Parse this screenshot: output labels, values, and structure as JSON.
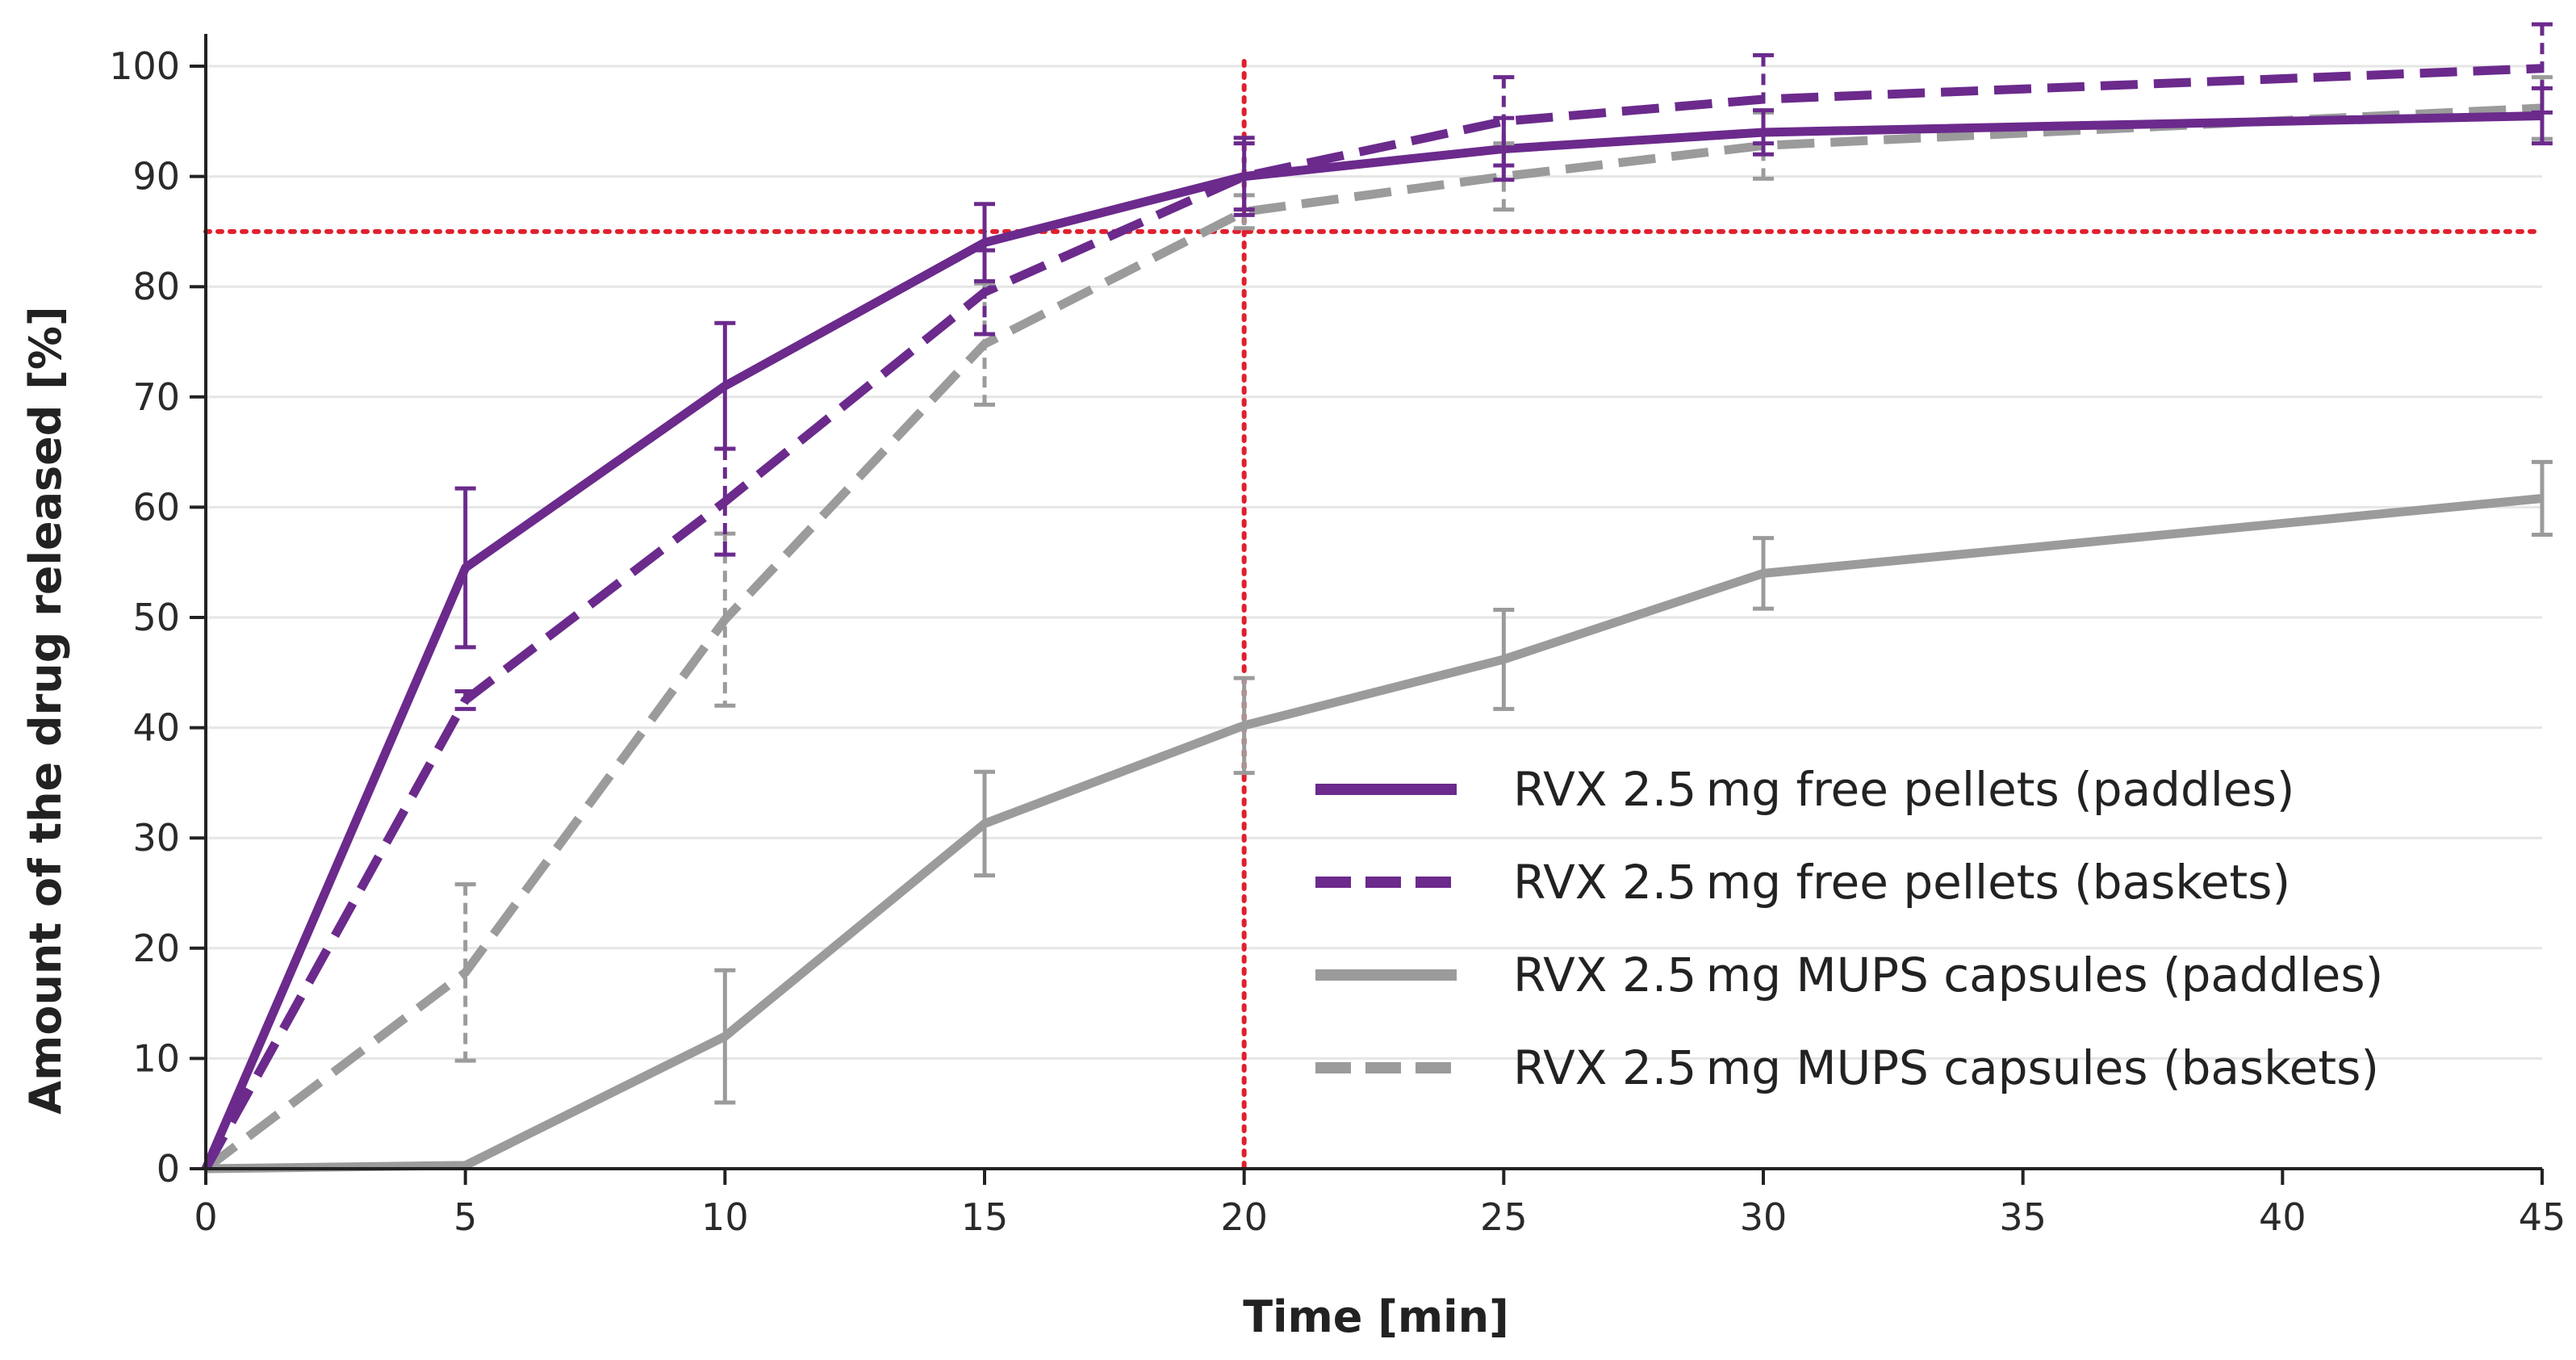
{
  "chart_data": {
    "type": "line",
    "title": "",
    "xlabel": "Time [min]",
    "ylabel": "Amount of the drug released [%]",
    "xlim": [
      0,
      45
    ],
    "ylim": [
      0,
      100
    ],
    "xticks": [
      0,
      5,
      10,
      15,
      20,
      25,
      30,
      35,
      40,
      45
    ],
    "yticks": [
      0,
      10,
      20,
      30,
      40,
      50,
      60,
      70,
      80,
      90,
      100
    ],
    "grid": "horizontal",
    "reference_lines": {
      "y": 85,
      "x": 20,
      "color": "#e0202e",
      "style": "dotted"
    },
    "legend_position": "lower-right",
    "series": [
      {
        "name": "RVX 2.5 mg free pellets (paddles)",
        "color": "#6b2a8c",
        "dash": "solid",
        "x": [
          0,
          5,
          10,
          15,
          20,
          25,
          30,
          45
        ],
        "values": [
          0,
          54.5,
          71,
          84,
          90,
          92.5,
          94,
          95.5
        ],
        "error": [
          0,
          7.2,
          5.7,
          3.5,
          3,
          2.8,
          2,
          2.5
        ]
      },
      {
        "name": "RVX 2.5 mg free pellets (baskets)",
        "color": "#6b2a8c",
        "dash": "dashed",
        "x": [
          0,
          5,
          10,
          15,
          20,
          25,
          30,
          45
        ],
        "values": [
          0,
          42.5,
          60.5,
          79.5,
          90,
          95,
          97,
          99.8
        ],
        "error": [
          0,
          0.8,
          4.8,
          3.8,
          3.5,
          4,
          4,
          4
        ]
      },
      {
        "name": "RVX 2.5 mg MUPS capsules (paddles)",
        "color": "#9b9b9b",
        "dash": "solid",
        "x": [
          0,
          5,
          10,
          15,
          20,
          25,
          30,
          45
        ],
        "values": [
          0,
          0.3,
          12,
          31.3,
          40.2,
          46.2,
          54,
          60.8
        ],
        "error": [
          0,
          0,
          6,
          4.7,
          4.3,
          4.5,
          3.2,
          3.3
        ]
      },
      {
        "name": "RVX 2.5 mg MUPS capsules (baskets)",
        "color": "#9b9b9b",
        "dash": "dashed",
        "x": [
          0,
          5,
          10,
          15,
          20,
          25,
          30,
          45
        ],
        "values": [
          0,
          17.8,
          49.8,
          74.8,
          86.8,
          90,
          92.8,
          96.2
        ],
        "error": [
          0,
          8,
          7.8,
          5.5,
          1.5,
          3,
          3,
          2.8
        ]
      }
    ]
  }
}
